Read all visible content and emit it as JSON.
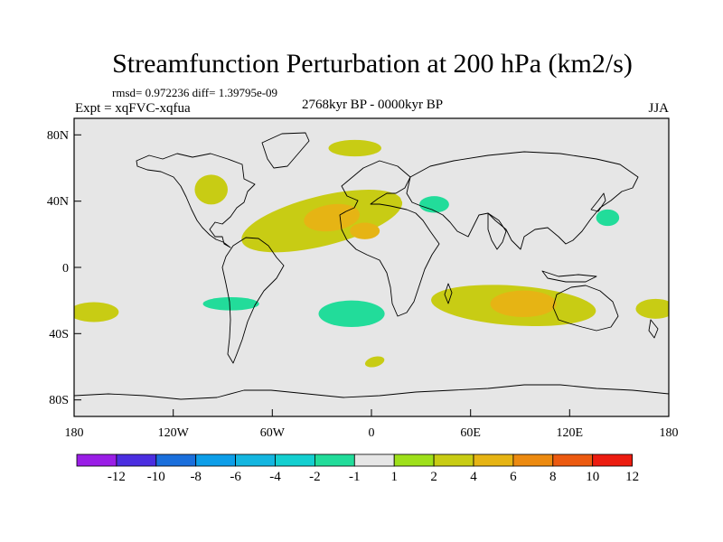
{
  "chart_data": {
    "type": "heatmap",
    "title": "Streamfunction Perturbation at 200 hPa (km2/s)",
    "stats": "rmsd= 0.972236 diff= 1.39795e-09",
    "experiment": "Expt = xqFVC-xqfua",
    "period": "2768kyr BP - 0000kyr BP",
    "season": "JJA",
    "xlim": [
      -180,
      180
    ],
    "ylim": [
      -90,
      90
    ],
    "x_ticks": [
      {
        "value": -180,
        "label": "180"
      },
      {
        "value": -120,
        "label": "120W"
      },
      {
        "value": -60,
        "label": "60W"
      },
      {
        "value": 0,
        "label": "0"
      },
      {
        "value": 60,
        "label": "60E"
      },
      {
        "value": 120,
        "label": "120E"
      },
      {
        "value": 180,
        "label": "180"
      }
    ],
    "y_ticks": [
      {
        "value": 80,
        "label": "80N"
      },
      {
        "value": 40,
        "label": "40N"
      },
      {
        "value": 0,
        "label": "0"
      },
      {
        "value": -40,
        "label": "40S"
      },
      {
        "value": -80,
        "label": "80S"
      }
    ],
    "colorbar": {
      "levels": [
        "-12",
        "-10",
        "-8",
        "-6",
        "-4",
        "-2",
        "-1",
        "1",
        "2",
        "4",
        "6",
        "8",
        "10",
        "12"
      ],
      "colors": [
        "#9a1ee6",
        "#4b2ee0",
        "#1a6fdc",
        "#0d9ee8",
        "#14b6e0",
        "#14cfd0",
        "#22dc9a",
        "#e6e6e6",
        "#9ee01a",
        "#c8cc14",
        "#e6b414",
        "#ec8a10",
        "#ec5a10",
        "#ec1c10"
      ]
    },
    "regions": [
      {
        "name": "n-atlantic-positive-outer",
        "value": 2,
        "lon": -30,
        "lat": 28,
        "lon_radius": 50,
        "lat_radius": 15,
        "rotate": -14
      },
      {
        "name": "n-atlantic-positive-inner",
        "value": 4,
        "lon": -24,
        "lat": 30,
        "lon_radius": 17,
        "lat_radius": 8,
        "rotate": -8
      },
      {
        "name": "n-africa-positive-inner",
        "value": 4,
        "lon": -4,
        "lat": 22,
        "lon_radius": 9,
        "lat_radius": 5,
        "rotate": 0
      },
      {
        "name": "arctic-positive",
        "value": 2,
        "lon": -10,
        "lat": 72,
        "lon_radius": 16,
        "lat_radius": 5,
        "rotate": 0
      },
      {
        "name": "n-america-positive",
        "value": 2,
        "lon": -97,
        "lat": 47,
        "lon_radius": 10,
        "lat_radius": 9,
        "rotate": 0
      },
      {
        "name": "s-pacific-negative-outer",
        "value": -1,
        "lon": -62,
        "lat": -24,
        "lon_radius": 52,
        "lat_radius": 12,
        "rotate": 3
      },
      {
        "name": "s-pacific-negative-inner",
        "value": -2,
        "lon": -85,
        "lat": -22,
        "lon_radius": 17,
        "lat_radius": 4,
        "rotate": 0
      },
      {
        "name": "s-atlantic-negative-outer",
        "value": -1,
        "lon": -10,
        "lat": -27,
        "lon_radius": 30,
        "lat_radius": 12,
        "rotate": 0
      },
      {
        "name": "s-atlantic-negative-inner",
        "value": -2,
        "lon": -12,
        "lat": -28,
        "lon_radius": 20,
        "lat_radius": 8,
        "rotate": 0
      },
      {
        "name": "eurasia-negative-outer",
        "value": -1,
        "lon": 40,
        "lat": 42,
        "lon_radius": 23,
        "lat_radius": 14,
        "rotate": 10
      },
      {
        "name": "eurasia-negative-inner",
        "value": -2,
        "lon": 38,
        "lat": 38,
        "lon_radius": 9,
        "lat_radius": 5,
        "rotate": 0
      },
      {
        "name": "e-asia-negative-outer",
        "value": -1,
        "lon": 140,
        "lat": 33,
        "lon_radius": 30,
        "lat_radius": 12,
        "rotate": -15
      },
      {
        "name": "e-asia-negative-inner",
        "value": -2,
        "lon": 143,
        "lat": 30,
        "lon_radius": 7,
        "lat_radius": 5,
        "rotate": 0
      },
      {
        "name": "indian-ocean-positive-outer",
        "value": 2,
        "lon": 86,
        "lat": -23,
        "lon_radius": 50,
        "lat_radius": 12,
        "rotate": 4
      },
      {
        "name": "indian-ocean-positive-inner",
        "value": 4,
        "lon": 92,
        "lat": -22,
        "lon_radius": 20,
        "lat_radius": 8,
        "rotate": 0
      },
      {
        "name": "e-pacific-negative",
        "value": -1,
        "lon": -155,
        "lat": 13,
        "lon_radius": 14,
        "lat_radius": 5,
        "rotate": -10
      },
      {
        "name": "w-pacific-positive",
        "value": 2,
        "lon": -168,
        "lat": -27,
        "lon_radius": 15,
        "lat_radius": 6,
        "rotate": 0
      },
      {
        "name": "e-australia-positive",
        "value": 2,
        "lon": 172,
        "lat": -25,
        "lon_radius": 12,
        "lat_radius": 6,
        "rotate": 0
      },
      {
        "name": "s-atlantic-positive-small",
        "value": 2,
        "lon": 2,
        "lat": -57,
        "lon_radius": 6,
        "lat_radius": 3,
        "rotate": -15
      },
      {
        "name": "southern-ocean-negative",
        "value": -1,
        "lon": 66,
        "lat": -58,
        "lon_radius": 9,
        "lat_radius": 6,
        "rotate": -15
      },
      {
        "name": "arabia-negative-small",
        "value": -1,
        "lon": 78,
        "lat": 17,
        "lon_radius": 2,
        "lat_radius": 3,
        "rotate": 0
      }
    ]
  }
}
